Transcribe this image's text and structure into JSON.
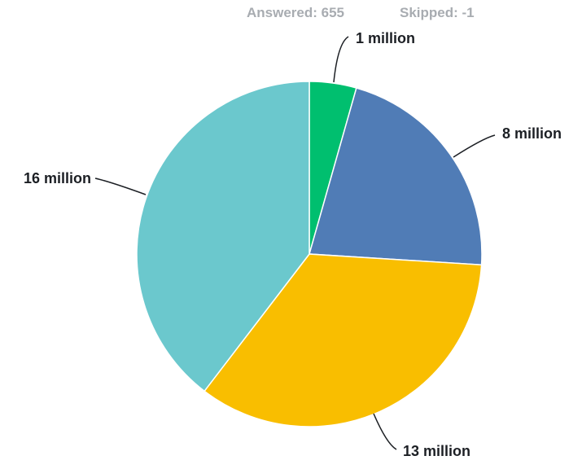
{
  "summary": {
    "answered": "Answered: 655",
    "skipped": "Skipped: -1"
  },
  "chart_data": {
    "type": "pie",
    "title": "",
    "categories": [
      "1 million",
      "8 million",
      "13 million",
      "16 million"
    ],
    "values": [
      4.4,
      21.6,
      34.4,
      39.6
    ],
    "unit": "percent of respondents",
    "colors": [
      "#00bf6f",
      "#507cb6",
      "#f9be00",
      "#6bc8cd"
    ],
    "start_angle": "12 o'clock",
    "direction": "clockwise",
    "labels_outside": true
  }
}
